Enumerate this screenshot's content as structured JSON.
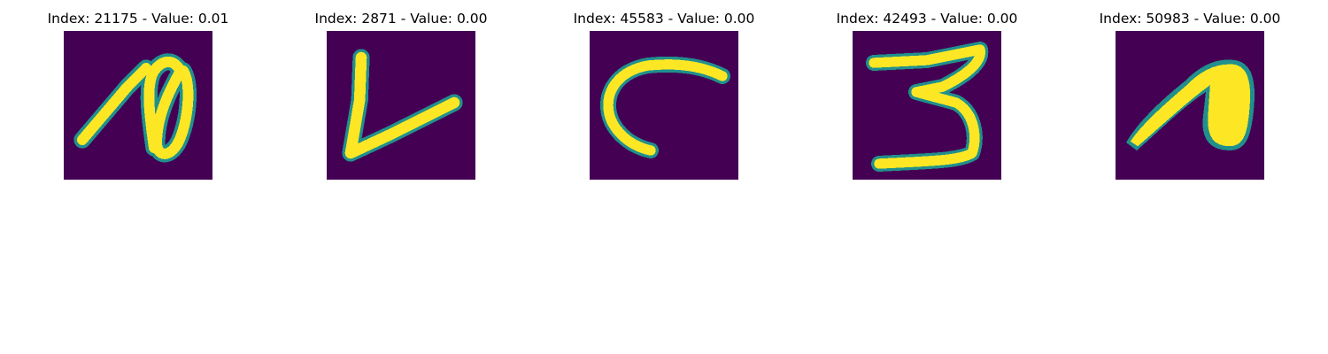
{
  "figure": {
    "colormap": "viridis",
    "background_color": "#440154",
    "stroke_color": "#fde725",
    "edge_color": "#21908d",
    "panels": [
      {
        "title": "Index: 21175 - Value: 0.01",
        "glyph": "hooked-stroke-icon"
      },
      {
        "title": "Index: 2871 - Value: 0.00",
        "glyph": "letter-l-icon"
      },
      {
        "title": "Index: 45583 - Value: 0.00",
        "glyph": "letter-c-icon"
      },
      {
        "title": "Index: 42493 - Value: 0.00",
        "glyph": "digit-3-icon"
      },
      {
        "title": "Index: 50983 - Value: 0.00",
        "glyph": "filled-hook-icon"
      }
    ]
  }
}
